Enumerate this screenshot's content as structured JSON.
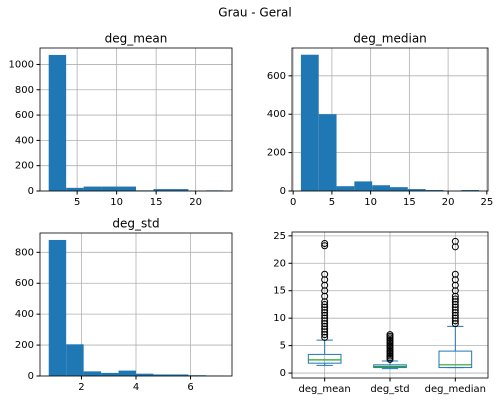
{
  "title": "Grau - Geral",
  "chart_data": [
    {
      "type": "histogram",
      "title": "deg_mean",
      "color": "#1f77b4",
      "grid": true,
      "bins": [
        1.4,
        3.61,
        5.82,
        8.03,
        10.24,
        12.45,
        14.66,
        16.87,
        19.08,
        21.29,
        23.5
      ],
      "counts": [
        1075,
        25,
        35,
        35,
        35,
        5,
        15,
        15,
        0,
        5
      ],
      "xlim": [
        0.3,
        24.6
      ],
      "xticks": [
        5,
        10,
        15,
        20
      ],
      "ylim": [
        0,
        1130
      ],
      "yticks": [
        0,
        200,
        400,
        600,
        800,
        1000
      ]
    },
    {
      "type": "histogram",
      "title": "deg_median",
      "color": "#1f77b4",
      "grid": true,
      "bins": [
        1,
        3.3,
        5.6,
        7.9,
        10.2,
        12.5,
        14.8,
        17.1,
        19.4,
        21.7,
        24
      ],
      "counts": [
        710,
        400,
        25,
        50,
        30,
        20,
        10,
        5,
        0,
        5
      ],
      "xlim": [
        -0.15,
        25.15
      ],
      "xticks": [
        0,
        5,
        10,
        15,
        20,
        25
      ],
      "ylim": [
        0,
        745
      ],
      "yticks": [
        0,
        200,
        400,
        600
      ]
    },
    {
      "type": "histogram",
      "title": "deg_std",
      "color": "#1f77b4",
      "grid": true,
      "bins": [
        0.8,
        1.44,
        2.08,
        2.72,
        3.36,
        4.0,
        4.64,
        5.28,
        5.92,
        6.56,
        7.2
      ],
      "counts": [
        880,
        205,
        30,
        20,
        35,
        15,
        10,
        10,
        5,
        3
      ],
      "xlim": [
        0.48,
        7.52
      ],
      "xticks": [
        2,
        4,
        6
      ],
      "ylim": [
        0,
        925
      ],
      "yticks": [
        0,
        200,
        400,
        600,
        800
      ]
    },
    {
      "type": "box",
      "color": "#1f77b4",
      "median_color": "#2ca02c",
      "grid": true,
      "categories": [
        "deg_mean",
        "deg_std",
        "deg_median"
      ],
      "boxes": [
        {
          "min": 1.4,
          "q1": 1.8,
          "median": 2.4,
          "q3": 3.4,
          "max": 6,
          "outliers": [
            6.5,
            7,
            7.5,
            8,
            8.5,
            9,
            9.5,
            10,
            10.5,
            11,
            11.5,
            12,
            12.5,
            13,
            14,
            15,
            16,
            17,
            18,
            23.2,
            23.6
          ]
        },
        {
          "min": 0.8,
          "q1": 1.0,
          "median": 1.2,
          "q3": 1.5,
          "max": 2.2,
          "outliers": [
            2.5,
            2.8,
            3.1,
            3.4,
            3.7,
            4,
            4.3,
            4.6,
            4.9,
            5.2,
            5.5,
            5.8,
            6.1,
            6.4,
            6.7,
            7
          ]
        },
        {
          "min": 1,
          "q1": 1,
          "median": 1.5,
          "q3": 4,
          "max": 8.5,
          "outliers": [
            9,
            9.5,
            10,
            10.5,
            11,
            11.5,
            12,
            12.5,
            13,
            13.5,
            14,
            15,
            16,
            17,
            18,
            23,
            24
          ]
        }
      ],
      "ylim": [
        -0.9,
        25.7
      ],
      "yticks": [
        0,
        5,
        10,
        15,
        20,
        25
      ]
    }
  ]
}
